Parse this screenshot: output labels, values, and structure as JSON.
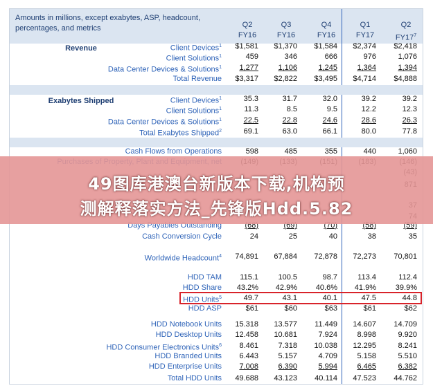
{
  "header": {
    "title": "Amounts in millions, except exabytes, ASP, headcount, percentages, and metrics",
    "columns": [
      {
        "q": "Q2",
        "fy": "FY16",
        "sup": ""
      },
      {
        "q": "Q3",
        "fy": "FY16",
        "sup": ""
      },
      {
        "q": "Q4",
        "fy": "FY16",
        "sup": ""
      },
      {
        "q": "Q1",
        "fy": "FY17",
        "sup": ""
      },
      {
        "q": "Q2",
        "fy": "FY17",
        "sup": "7"
      }
    ]
  },
  "sections": {
    "revenue": "Revenue",
    "exabytes": "Exabytes Shipped"
  },
  "rows": [
    {
      "label": "Client Devices",
      "sup": "1",
      "values": [
        "$1,581",
        "$1,370",
        "$1,584",
        "$2,374",
        "$2,418"
      ]
    },
    {
      "label": "Client Solutions",
      "sup": "1",
      "values": [
        "459",
        "346",
        "666",
        "976",
        "1,076"
      ]
    },
    {
      "label": "Data Center Devices & Solutions",
      "sup": "1",
      "values": [
        "1,277",
        "1,106",
        "1,245",
        "1,364",
        "1,394"
      ]
    },
    {
      "label": "Total Revenue",
      "sup": "",
      "values": [
        "$3,317",
        "$2,822",
        "$3,495",
        "$4,714",
        "$4,888"
      ]
    },
    {
      "label": "Client Devices",
      "sup": "1",
      "values": [
        "35.3",
        "31.7",
        "32.0",
        "39.2",
        "39.2"
      ]
    },
    {
      "label": "Client Solutions",
      "sup": "1",
      "values": [
        "11.3",
        "8.5",
        "9.5",
        "12.2",
        "12.3"
      ]
    },
    {
      "label": "Data Center Devices & Solutions",
      "sup": "1",
      "values": [
        "22.5",
        "22.8",
        "24.6",
        "28.6",
        "26.3"
      ]
    },
    {
      "label": "Total Exabytes Shipped",
      "sup": "2",
      "values": [
        "69.1",
        "63.0",
        "66.1",
        "80.0",
        "77.8"
      ]
    },
    {
      "label": "Cash Flows from Operations",
      "sup": "",
      "values": [
        "598",
        "485",
        "355",
        "440",
        "1,060"
      ]
    },
    {
      "label": "Purchases of Property, Plant and Equipment, net",
      "sup": "",
      "values": [
        "(149)",
        "(133)",
        "(151)",
        "(183)",
        "(146)"
      ]
    },
    {
      "label": "",
      "sup": "",
      "values": [
        "",
        "",
        "",
        "",
        "(43)"
      ]
    },
    {
      "label": "",
      "sup": "",
      "values": [
        "",
        "",
        "",
        "",
        "871"
      ]
    },
    {
      "label": "",
      "sup": "",
      "values": [
        "",
        "",
        "",
        "",
        "37"
      ]
    },
    {
      "label": "",
      "sup": "",
      "values": [
        "",
        "",
        "",
        "",
        "74"
      ]
    },
    {
      "label": "Days Payables Outstanding",
      "sup": "",
      "values": [
        "(68)",
        "(69)",
        "(70)",
        "(58)",
        "(59)"
      ]
    },
    {
      "label": "Cash Conversion Cycle",
      "sup": "",
      "values": [
        "24",
        "25",
        "40",
        "38",
        "35"
      ]
    },
    {
      "label": "Worldwide Headcount",
      "sup": "4",
      "values": [
        "74,891",
        "67,884",
        "72,878",
        "72,273",
        "70,801"
      ]
    },
    {
      "label": "HDD TAM",
      "sup": "",
      "values": [
        "115.1",
        "100.5",
        "98.7",
        "113.4",
        "112.4"
      ]
    },
    {
      "label": "HDD Share",
      "sup": "",
      "values": [
        "43.2%",
        "42.9%",
        "40.6%",
        "41.9%",
        "39.9%"
      ]
    },
    {
      "label": "HDD Units",
      "sup": "5",
      "values": [
        "49.7",
        "43.1",
        "40.1",
        "47.5",
        "44.8"
      ]
    },
    {
      "label": "HDD ASP",
      "sup": "",
      "values": [
        "$61",
        "$60",
        "$63",
        "$61",
        "$62"
      ]
    },
    {
      "label": "HDD Notebook Units",
      "sup": "",
      "values": [
        "15.318",
        "13.577",
        "11.449",
        "14.607",
        "14.709"
      ]
    },
    {
      "label": "HDD Desktop Units",
      "sup": "",
      "values": [
        "12.458",
        "10.681",
        "7.924",
        "8.998",
        "9.920"
      ]
    },
    {
      "label": "HDD Consumer Electronics Units",
      "sup": "6",
      "values": [
        "8.461",
        "7.318",
        "10.038",
        "12.295",
        "8.241"
      ]
    },
    {
      "label": "HDD Branded Units",
      "sup": "",
      "values": [
        "6.443",
        "5.157",
        "4.709",
        "5.158",
        "5.510"
      ]
    },
    {
      "label": "HDD Enterprise Units",
      "sup": "",
      "values": [
        "7.008",
        "6.390",
        "5.994",
        "6.465",
        "6.382"
      ]
    },
    {
      "label": "Total HDD Units",
      "sup": "",
      "values": [
        "49.688",
        "43.123",
        "40.114",
        "47.523",
        "44.762"
      ]
    }
  ],
  "banner": {
    "line1": "49图库港澳台新版本下载,机构预",
    "line2": "测解释落实方法_先锋版Hdd.5.82"
  },
  "colors": {
    "header_band": "#dbe5f1",
    "label_blue": "#2e63b8",
    "section_navy": "#1f3f73",
    "highlight_red": "#d8232a",
    "banner_pink": "#e49696"
  }
}
